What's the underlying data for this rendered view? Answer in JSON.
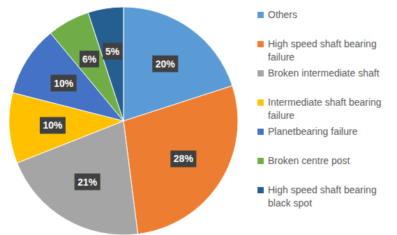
{
  "chart_data": {
    "type": "pie",
    "categories": [
      "Others",
      "High speed shaft bearing failure",
      "Broken intermediate shaft",
      "Intermediate shaft bearing failure",
      "Planetbearing failure",
      "Broken centre post",
      "High speed shaft bearing black spot"
    ],
    "values": [
      20,
      28,
      21,
      10,
      10,
      6,
      5
    ],
    "value_labels": [
      "20%",
      "28%",
      "21%",
      "10%",
      "10%",
      "6%",
      "5%"
    ],
    "colors": [
      "#5B9BD5",
      "#ED7D31",
      "#A5A5A5",
      "#FFC000",
      "#4472C4",
      "#70AD47",
      "#255E91"
    ],
    "legend": "right",
    "data_labels": true
  }
}
